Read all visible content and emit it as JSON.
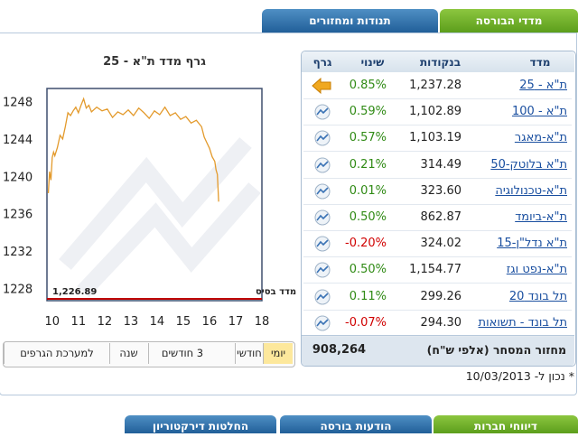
{
  "tabs_top": [
    {
      "label": "מדדי הבורסה",
      "active": true
    },
    {
      "label": "תנודות ומחזורים",
      "active": false
    }
  ],
  "graph": {
    "type": "line",
    "title": "גרף מדד ת\"א - 25",
    "color": "#e39a2c",
    "x": [
      9.85,
      9.9,
      9.95,
      10.0,
      10.05,
      10.1,
      10.2,
      10.3,
      10.4,
      10.5,
      10.6,
      10.7,
      10.8,
      10.9,
      11.0,
      11.1,
      11.2,
      11.3,
      11.4,
      11.5,
      11.7,
      11.9,
      12.1,
      12.3,
      12.5,
      12.7,
      12.9,
      13.1,
      13.3,
      13.5,
      13.7,
      13.9,
      14.1,
      14.3,
      14.5,
      14.7,
      14.9,
      15.1,
      15.3,
      15.5,
      15.7,
      15.8,
      15.9,
      16.0,
      16.1,
      16.2,
      16.25,
      16.3,
      16.35
    ],
    "values": [
      1238.2,
      1240.5,
      1239.6,
      1242.0,
      1242.6,
      1242.2,
      1243.1,
      1244.4,
      1244.0,
      1245.3,
      1246.8,
      1246.5,
      1247.0,
      1247.4,
      1246.8,
      1247.6,
      1248.3,
      1247.3,
      1247.6,
      1246.9,
      1247.4,
      1247.0,
      1247.2,
      1246.3,
      1246.9,
      1246.6,
      1247.1,
      1246.5,
      1247.3,
      1246.8,
      1246.2,
      1247.0,
      1246.6,
      1247.4,
      1246.5,
      1246.8,
      1246.1,
      1246.4,
      1245.7,
      1246.0,
      1245.3,
      1244.2,
      1243.6,
      1243.0,
      1242.1,
      1241.6,
      1240.7,
      1240.2,
      1237.3
    ],
    "xlim": [
      9.8,
      18.0
    ],
    "ylim": [
      1226.7,
      1249.4
    ],
    "xticks": [
      10,
      11,
      12,
      13,
      14,
      15,
      16,
      17,
      18
    ],
    "yticks": [
      1228,
      1232,
      1236,
      1240,
      1244,
      1248
    ],
    "base_label": "מדד בסיס",
    "base_value": 1226.89,
    "base_value_label": "1,226.89",
    "base_color": "#c00000"
  },
  "range_buttons": [
    {
      "label": "יומי",
      "active": true
    },
    {
      "label": "חודשי",
      "active": false
    },
    {
      "label": "3 חודשים",
      "active": false
    },
    {
      "label": "שנה",
      "active": false
    },
    {
      "label": "למערכת הגרפים",
      "active": false
    }
  ],
  "table": {
    "headers": [
      "מדד",
      "בנקודות",
      "שינוי",
      "גרף"
    ],
    "selected_row": 0,
    "rows": [
      [
        "ת\"א - 25",
        "1,237.28",
        "0.85%"
      ],
      [
        "ת\"א - 100",
        "1,102.89",
        "0.59%"
      ],
      [
        "ת\"א-מאגר",
        "1,103.19",
        "0.57%"
      ],
      [
        "ת\"א בלוטק-50",
        "314.49",
        "0.21%"
      ],
      [
        "ת\"א-טכנולוגיה",
        "323.60",
        "0.01%"
      ],
      [
        "ת\"א-ביומד",
        "862.87",
        "0.50%"
      ],
      [
        "ת\"א נדל\"ן-15",
        "324.02",
        "-0.20%"
      ],
      [
        "ת\"א-נפט וגז",
        "1,154.77",
        "0.50%"
      ],
      [
        "תל בונד 20",
        "299.26",
        "0.11%"
      ],
      [
        "תל בונד - תשואות",
        "294.30",
        "-0.07%"
      ]
    ],
    "footer": {
      "label": "מחזור המסחר (אלפי ש\"ח)",
      "value": "908,264"
    }
  },
  "note": "* נכון ל- 10/03/2013",
  "tabs_bottom": [
    {
      "label": "דיווחי חברות",
      "active": true
    },
    {
      "label": "הודעות בורסה",
      "active": false
    },
    {
      "label": "החלטות דירקטוריון",
      "active": false
    }
  ]
}
